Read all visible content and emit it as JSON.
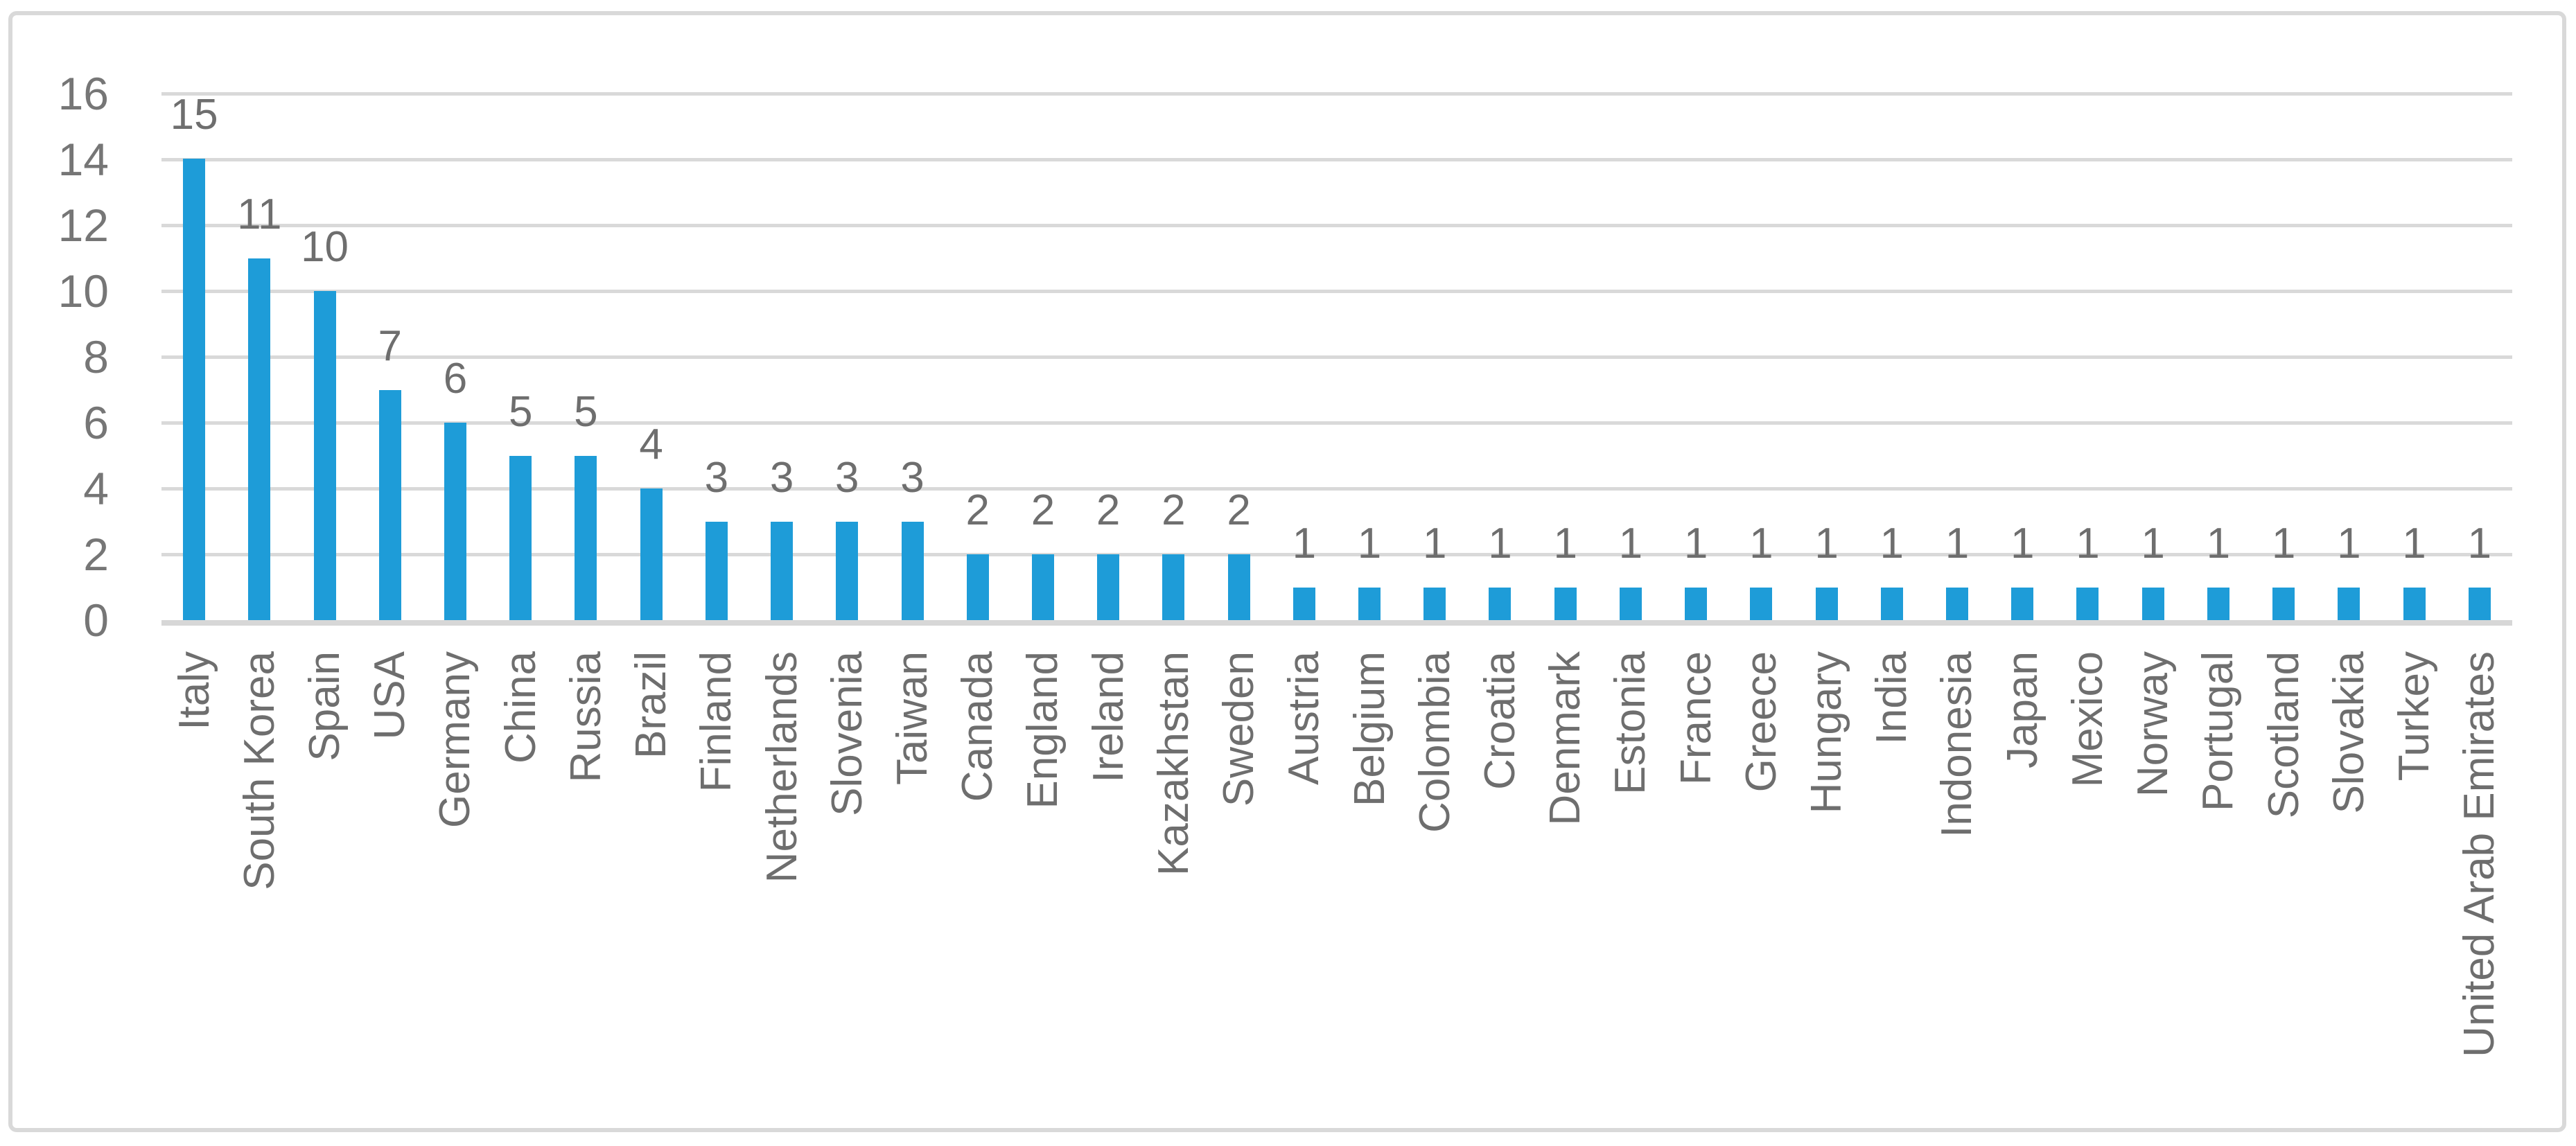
{
  "chart_data": {
    "type": "bar",
    "title": "",
    "xlabel": "",
    "ylabel": "",
    "categories": [
      "Italy",
      "South Korea",
      "Spain",
      "USA",
      "Germany",
      "China",
      "Russia",
      "Brazil",
      "Finland",
      "Netherlands",
      "Slovenia",
      "Taiwan",
      "Canada",
      "England",
      "Ireland",
      "Kazakhstan",
      "Sweden",
      "Austria",
      "Belgium",
      "Colombia",
      "Croatia",
      "Denmark",
      "Estonia",
      "France",
      "Greece",
      "Hungary",
      "India",
      "Indonesia",
      "Japan",
      "Mexico",
      "Norway",
      "Portugal",
      "Scotland",
      "Slovakia",
      "Turkey",
      "United Arab Emirates"
    ],
    "values": [
      15,
      11,
      10,
      7,
      6,
      5,
      5,
      4,
      3,
      3,
      3,
      3,
      2,
      2,
      2,
      2,
      2,
      1,
      1,
      1,
      1,
      1,
      1,
      1,
      1,
      1,
      1,
      1,
      1,
      1,
      1,
      1,
      1,
      1,
      1,
      1
    ],
    "data_labels_visible": true,
    "data_label_position": "outside-end",
    "ylim": [
      0,
      16
    ],
    "yticks": [
      0,
      2,
      4,
      6,
      8,
      10,
      12,
      14,
      16
    ],
    "grid": true,
    "legend": "none",
    "category_label_rotation": "90-degrees-bottom-to-top",
    "colors": {
      "bar": "#1e9cd8",
      "gridline": "#d9d9d9",
      "axis_line": "#d7d7d7",
      "tick_label": "#767676",
      "data_label": "#6e6e6e",
      "category_label": "#6e6e6e",
      "frame_border": "#d9d9d9",
      "background": "#ffffff"
    }
  }
}
